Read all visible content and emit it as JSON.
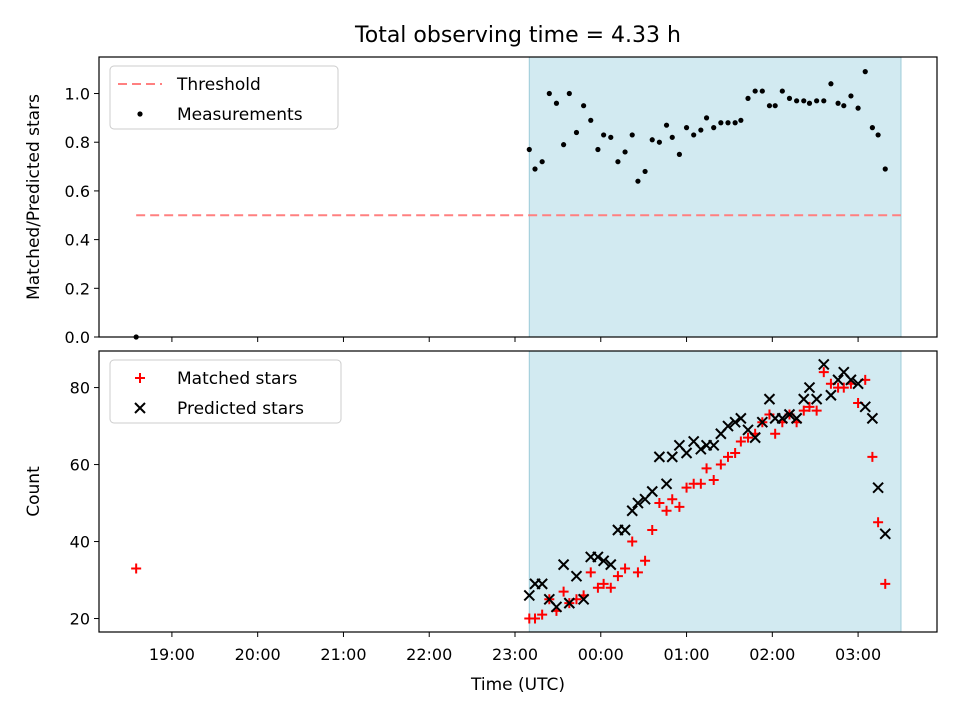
{
  "figure_title": "Total observing time = 4.33 h",
  "chart_data": [
    {
      "type": "scatter",
      "ylabel": "Matched/Predicted stars",
      "xlim": [
        18.15,
        3.92
      ],
      "ylim": [
        0.0,
        1.15
      ],
      "yticks": [
        0.0,
        0.2,
        0.4,
        0.6,
        0.8,
        1.0
      ],
      "shaded_span": [
        "23:10",
        "03:30"
      ],
      "shaded_color": "#add8e6",
      "legend": {
        "placement": "top-left",
        "entries": [
          "Threshold",
          "Measurements"
        ]
      },
      "threshold": {
        "name": "Threshold",
        "y": 0.5,
        "x_range": [
          "18:35",
          "03:30"
        ],
        "color": "#ff8080",
        "style": "dashed"
      },
      "series": [
        {
          "name": "Measurements",
          "color": "#000000",
          "points": [
            [
              "18:35",
              0.0
            ],
            [
              "23:10",
              0.77
            ],
            [
              "23:14",
              0.69
            ],
            [
              "23:19",
              0.72
            ],
            [
              "23:24",
              1.0
            ],
            [
              "23:29",
              0.96
            ],
            [
              "23:34",
              0.79
            ],
            [
              "23:38",
              1.0
            ],
            [
              "23:43",
              0.84
            ],
            [
              "23:48",
              0.95
            ],
            [
              "23:53",
              0.89
            ],
            [
              "23:58",
              0.77
            ],
            [
              "00:02",
              0.83
            ],
            [
              "00:07",
              0.82
            ],
            [
              "00:12",
              0.72
            ],
            [
              "00:17",
              0.76
            ],
            [
              "00:22",
              0.83
            ],
            [
              "00:26",
              0.64
            ],
            [
              "00:31",
              0.68
            ],
            [
              "00:36",
              0.81
            ],
            [
              "00:41",
              0.8
            ],
            [
              "00:46",
              0.87
            ],
            [
              "00:50",
              0.82
            ],
            [
              "00:55",
              0.75
            ],
            [
              "01:00",
              0.86
            ],
            [
              "01:05",
              0.83
            ],
            [
              "01:10",
              0.85
            ],
            [
              "01:14",
              0.9
            ],
            [
              "01:19",
              0.86
            ],
            [
              "01:24",
              0.88
            ],
            [
              "01:29",
              0.88
            ],
            [
              "01:34",
              0.88
            ],
            [
              "01:38",
              0.89
            ],
            [
              "01:43",
              0.98
            ],
            [
              "01:48",
              1.01
            ],
            [
              "01:53",
              1.01
            ],
            [
              "01:58",
              0.95
            ],
            [
              "02:02",
              0.95
            ],
            [
              "02:07",
              1.01
            ],
            [
              "02:12",
              0.98
            ],
            [
              "02:17",
              0.97
            ],
            [
              "02:22",
              0.97
            ],
            [
              "02:26",
              0.96
            ],
            [
              "02:31",
              0.97
            ],
            [
              "02:36",
              0.97
            ],
            [
              "02:41",
              1.04
            ],
            [
              "02:46",
              0.96
            ],
            [
              "02:50",
              0.95
            ],
            [
              "02:55",
              0.99
            ],
            [
              "03:00",
              0.94
            ],
            [
              "03:05",
              1.09
            ],
            [
              "03:10",
              0.86
            ],
            [
              "03:14",
              0.83
            ],
            [
              "03:19",
              0.69
            ]
          ]
        }
      ]
    },
    {
      "type": "scatter",
      "xlabel": "Time (UTC)",
      "ylabel": "Count",
      "xlim": [
        18.15,
        3.92
      ],
      "ylim": [
        16.5,
        89.5
      ],
      "yticks": [
        20,
        40,
        60,
        80
      ],
      "xticks": [
        "19:00",
        "20:00",
        "21:00",
        "22:00",
        "23:00",
        "00:00",
        "01:00",
        "02:00",
        "03:00"
      ],
      "shaded_span": [
        "23:10",
        "03:30"
      ],
      "shaded_color": "#add8e6",
      "legend": {
        "placement": "top-left",
        "entries": [
          "Matched stars",
          "Predicted stars"
        ]
      },
      "series": [
        {
          "name": "Matched stars",
          "color": "#ff0000",
          "marker": "+",
          "points": [
            [
              "18:35",
              33
            ],
            [
              "23:10",
              20
            ],
            [
              "23:14",
              20
            ],
            [
              "23:19",
              21
            ],
            [
              "23:24",
              25
            ],
            [
              "23:29",
              22
            ],
            [
              "23:34",
              27
            ],
            [
              "23:38",
              24
            ],
            [
              "23:43",
              25
            ],
            [
              "23:48",
              26
            ],
            [
              "23:53",
              32
            ],
            [
              "23:58",
              28
            ],
            [
              "00:02",
              29
            ],
            [
              "00:07",
              28
            ],
            [
              "00:12",
              31
            ],
            [
              "00:17",
              33
            ],
            [
              "00:22",
              40
            ],
            [
              "00:26",
              32
            ],
            [
              "00:31",
              35
            ],
            [
              "00:36",
              43
            ],
            [
              "00:41",
              50
            ],
            [
              "00:46",
              48
            ],
            [
              "00:50",
              51
            ],
            [
              "00:55",
              49
            ],
            [
              "01:00",
              54
            ],
            [
              "01:05",
              55
            ],
            [
              "01:10",
              55
            ],
            [
              "01:14",
              59
            ],
            [
              "01:19",
              56
            ],
            [
              "01:24",
              60
            ],
            [
              "01:29",
              62
            ],
            [
              "01:34",
              63
            ],
            [
              "01:38",
              66
            ],
            [
              "01:43",
              67
            ],
            [
              "01:48",
              68
            ],
            [
              "01:53",
              71
            ],
            [
              "01:58",
              73
            ],
            [
              "02:02",
              68
            ],
            [
              "02:07",
              71
            ],
            [
              "02:12",
              73
            ],
            [
              "02:17",
              71
            ],
            [
              "02:22",
              74
            ],
            [
              "02:26",
              75
            ],
            [
              "02:31",
              74
            ],
            [
              "02:36",
              84
            ],
            [
              "02:41",
              81
            ],
            [
              "02:46",
              80
            ],
            [
              "02:50",
              80
            ],
            [
              "02:55",
              81
            ],
            [
              "03:00",
              76
            ],
            [
              "03:05",
              82
            ],
            [
              "03:10",
              62
            ],
            [
              "03:14",
              45
            ],
            [
              "03:19",
              29
            ]
          ]
        },
        {
          "name": "Predicted stars",
          "color": "#000000",
          "marker": "x",
          "points": [
            [
              "23:10",
              26
            ],
            [
              "23:14",
              29
            ],
            [
              "23:19",
              29
            ],
            [
              "23:24",
              25
            ],
            [
              "23:29",
              23
            ],
            [
              "23:34",
              34
            ],
            [
              "23:38",
              24
            ],
            [
              "23:43",
              31
            ],
            [
              "23:48",
              25
            ],
            [
              "23:53",
              36
            ],
            [
              "23:58",
              36
            ],
            [
              "00:02",
              35
            ],
            [
              "00:07",
              34
            ],
            [
              "00:12",
              43
            ],
            [
              "00:17",
              43
            ],
            [
              "00:22",
              48
            ],
            [
              "00:26",
              50
            ],
            [
              "00:31",
              51
            ],
            [
              "00:36",
              53
            ],
            [
              "00:41",
              62
            ],
            [
              "00:46",
              55
            ],
            [
              "00:50",
              62
            ],
            [
              "00:55",
              65
            ],
            [
              "01:00",
              63
            ],
            [
              "01:05",
              66
            ],
            [
              "01:10",
              64
            ],
            [
              "01:14",
              65
            ],
            [
              "01:19",
              65
            ],
            [
              "01:24",
              68
            ],
            [
              "01:29",
              70
            ],
            [
              "01:34",
              71
            ],
            [
              "01:38",
              72
            ],
            [
              "01:43",
              69
            ],
            [
              "01:48",
              67
            ],
            [
              "01:53",
              71
            ],
            [
              "01:58",
              77
            ],
            [
              "02:02",
              72
            ],
            [
              "02:07",
              72
            ],
            [
              "02:12",
              73
            ],
            [
              "02:17",
              72
            ],
            [
              "02:22",
              77
            ],
            [
              "02:26",
              80
            ],
            [
              "02:31",
              77
            ],
            [
              "02:36",
              86
            ],
            [
              "02:41",
              78
            ],
            [
              "02:46",
              82
            ],
            [
              "02:50",
              84
            ],
            [
              "02:55",
              82
            ],
            [
              "03:00",
              81
            ],
            [
              "03:05",
              75
            ],
            [
              "03:10",
              72
            ],
            [
              "03:14",
              54
            ],
            [
              "03:19",
              42
            ]
          ]
        }
      ]
    }
  ]
}
